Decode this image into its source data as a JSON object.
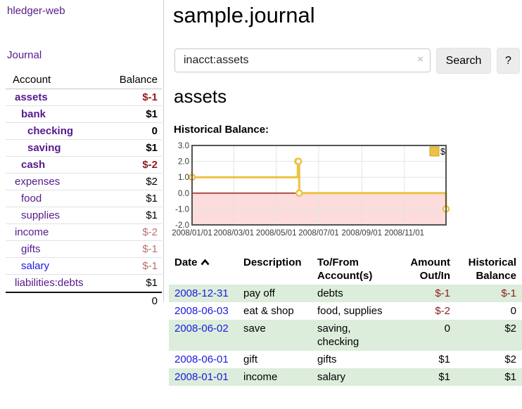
{
  "app": {
    "brand": "hledger-web",
    "nav": {
      "journal": "Journal"
    }
  },
  "colors": {
    "link_purple": "#551a8b",
    "link_blue": "#1a1ae0",
    "negative": "#8e1c1c",
    "negative_muted": "#bb6e6e",
    "text_black": "#000000",
    "row_shade_green": "#dceddb",
    "button_background": "#ececec",
    "chart_line_gold": "#edc240",
    "chart_negative_bg": "#fcdcdc",
    "chart_zero_line": "#930b0b",
    "chart_border": "#545454",
    "chart_grid": "#e3e3e3"
  },
  "sidebar": {
    "header": {
      "account": "Account",
      "balance": "Balance"
    },
    "accounts": [
      {
        "name": "assets",
        "depth": 1,
        "balance": "$-1",
        "bold": true,
        "name_color": "link_purple",
        "balance_color": "negative"
      },
      {
        "name": "bank",
        "depth": 2,
        "balance": "$1",
        "bold": true,
        "name_color": "link_purple",
        "balance_color": "text_black"
      },
      {
        "name": "checking",
        "depth": 3,
        "balance": "0",
        "bold": true,
        "name_color": "link_purple",
        "balance_color": "text_black"
      },
      {
        "name": "saving",
        "depth": 3,
        "balance": "$1",
        "bold": true,
        "name_color": "link_purple",
        "balance_color": "text_black"
      },
      {
        "name": "cash",
        "depth": 2,
        "balance": "$-2",
        "bold": true,
        "name_color": "link_purple",
        "balance_color": "negative"
      },
      {
        "name": "expenses",
        "depth": 1,
        "balance": "$2",
        "bold": false,
        "name_color": "link_purple",
        "balance_color": "text_black"
      },
      {
        "name": "food",
        "depth": 2,
        "balance": "$1",
        "bold": false,
        "name_color": "link_purple",
        "balance_color": "text_black"
      },
      {
        "name": "supplies",
        "depth": 2,
        "balance": "$1",
        "bold": false,
        "name_color": "link_purple",
        "balance_color": "text_black"
      },
      {
        "name": "income",
        "depth": 1,
        "balance": "$-2",
        "bold": false,
        "name_color": "link_purple",
        "balance_color": "negative_muted"
      },
      {
        "name": "gifts",
        "depth": 2,
        "balance": "$-1",
        "bold": false,
        "name_color": "link_purple",
        "balance_color": "negative_muted"
      },
      {
        "name": "salary",
        "depth": 2,
        "balance": "$-1",
        "bold": false,
        "name_color": "link_blue",
        "balance_color": "negative_muted"
      },
      {
        "name": "liabilities:debts",
        "depth": 1,
        "balance": "$1",
        "bold": false,
        "name_color": "link_purple",
        "balance_color": "text_black"
      }
    ],
    "total": "0"
  },
  "main": {
    "title": "sample.journal",
    "search": {
      "value": "inacct:assets",
      "clear_icon": "×",
      "search_label": "Search",
      "help_label": "?"
    },
    "account_title": "assets"
  },
  "chart_data": {
    "type": "line",
    "title": "Historical Balance:",
    "step": true,
    "xlim": [
      "2008/01/01",
      "2008/12/31"
    ],
    "ylim": [
      -2.0,
      3.0
    ],
    "yticks": [
      "3.0",
      "2.0",
      "1.0",
      "0.0",
      "-1.0",
      "-2.0"
    ],
    "xticks": [
      "2008/01/01",
      "2008/03/01",
      "2008/05/01",
      "2008/07/01",
      "2008/09/01",
      "2008/11/01"
    ],
    "legend": {
      "label": "$",
      "position": "top-right"
    },
    "grid": true,
    "series": [
      {
        "name": "$",
        "points": [
          [
            "2008/01/01",
            1.0
          ],
          [
            "2008/06/01",
            2.0
          ],
          [
            "2008/06/02",
            2.0
          ],
          [
            "2008/06/03",
            0.0
          ],
          [
            "2008/12/31",
            -1.0
          ]
        ]
      }
    ]
  },
  "register": {
    "columns": [
      "Date",
      "Description",
      "To/From Account(s)",
      "Amount Out/In",
      "Historical Balance"
    ],
    "sort": {
      "column": "Date",
      "direction": "ascending"
    },
    "rows": [
      {
        "date": "2008-12-31",
        "description": "pay off",
        "accounts": "debts",
        "amount": "$-1",
        "amount_color": "negative",
        "balance": "$-1",
        "balance_color": "negative",
        "shaded": true
      },
      {
        "date": "2008-06-03",
        "description": "eat & shop",
        "accounts": "food, supplies",
        "amount": "$-2",
        "amount_color": "negative",
        "balance": "0",
        "balance_color": "text_black",
        "shaded": false
      },
      {
        "date": "2008-06-02",
        "description": "save",
        "accounts": "saving, checking",
        "amount": "0",
        "amount_color": "text_black",
        "balance": "$2",
        "balance_color": "text_black",
        "shaded": true
      },
      {
        "date": "2008-06-01",
        "description": "gift",
        "accounts": "gifts",
        "amount": "$1",
        "amount_color": "text_black",
        "balance": "$2",
        "balance_color": "text_black",
        "shaded": false
      },
      {
        "date": "2008-01-01",
        "description": "income",
        "accounts": "salary",
        "amount": "$1",
        "amount_color": "text_black",
        "balance": "$1",
        "balance_color": "text_black",
        "shaded": true
      }
    ]
  }
}
